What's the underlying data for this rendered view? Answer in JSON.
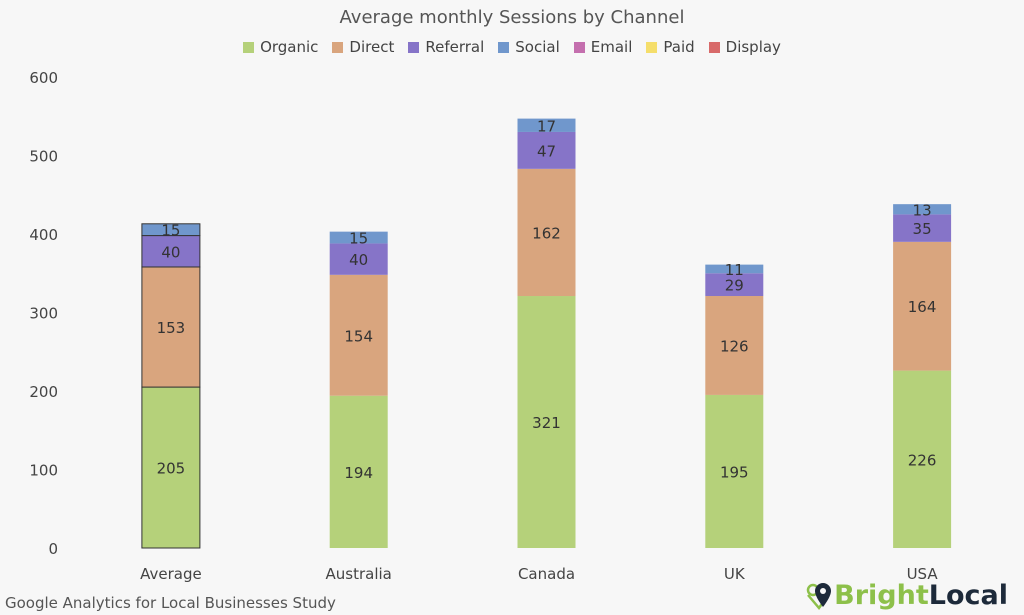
{
  "chart_data": {
    "type": "bar",
    "stacked": true,
    "title": "Average monthly Sessions by Channel",
    "categories": [
      "Average",
      "Australia",
      "Canada",
      "UK",
      "USA"
    ],
    "series": [
      {
        "name": "Organic",
        "color": "#b5d17a",
        "values": [
          205,
          194,
          321,
          195,
          226
        ]
      },
      {
        "name": "Direct",
        "color": "#d9a57e",
        "values": [
          153,
          154,
          162,
          126,
          164
        ]
      },
      {
        "name": "Referral",
        "color": "#8674c8",
        "values": [
          40,
          40,
          47,
          29,
          35
        ]
      },
      {
        "name": "Social",
        "color": "#7097cc",
        "values": [
          15,
          15,
          17,
          11,
          13
        ]
      },
      {
        "name": "Email",
        "color": "#c46fae",
        "values": [
          0,
          0,
          0,
          0,
          0
        ]
      },
      {
        "name": "Paid",
        "color": "#f5de6b",
        "values": [
          0,
          0,
          0,
          0,
          0
        ]
      },
      {
        "name": "Display",
        "color": "#d86a6a",
        "values": [
          0,
          0,
          0,
          0,
          0
        ]
      }
    ],
    "ylim": [
      0,
      600
    ],
    "yticks": [
      0,
      100,
      200,
      300,
      400,
      500,
      600
    ],
    "grid": false,
    "legend": "top",
    "xlabel": "",
    "ylabel": ""
  },
  "footer": "Google Analytics for Local Businesses Study",
  "logo": {
    "part1": "Bright",
    "part2": "Local"
  }
}
